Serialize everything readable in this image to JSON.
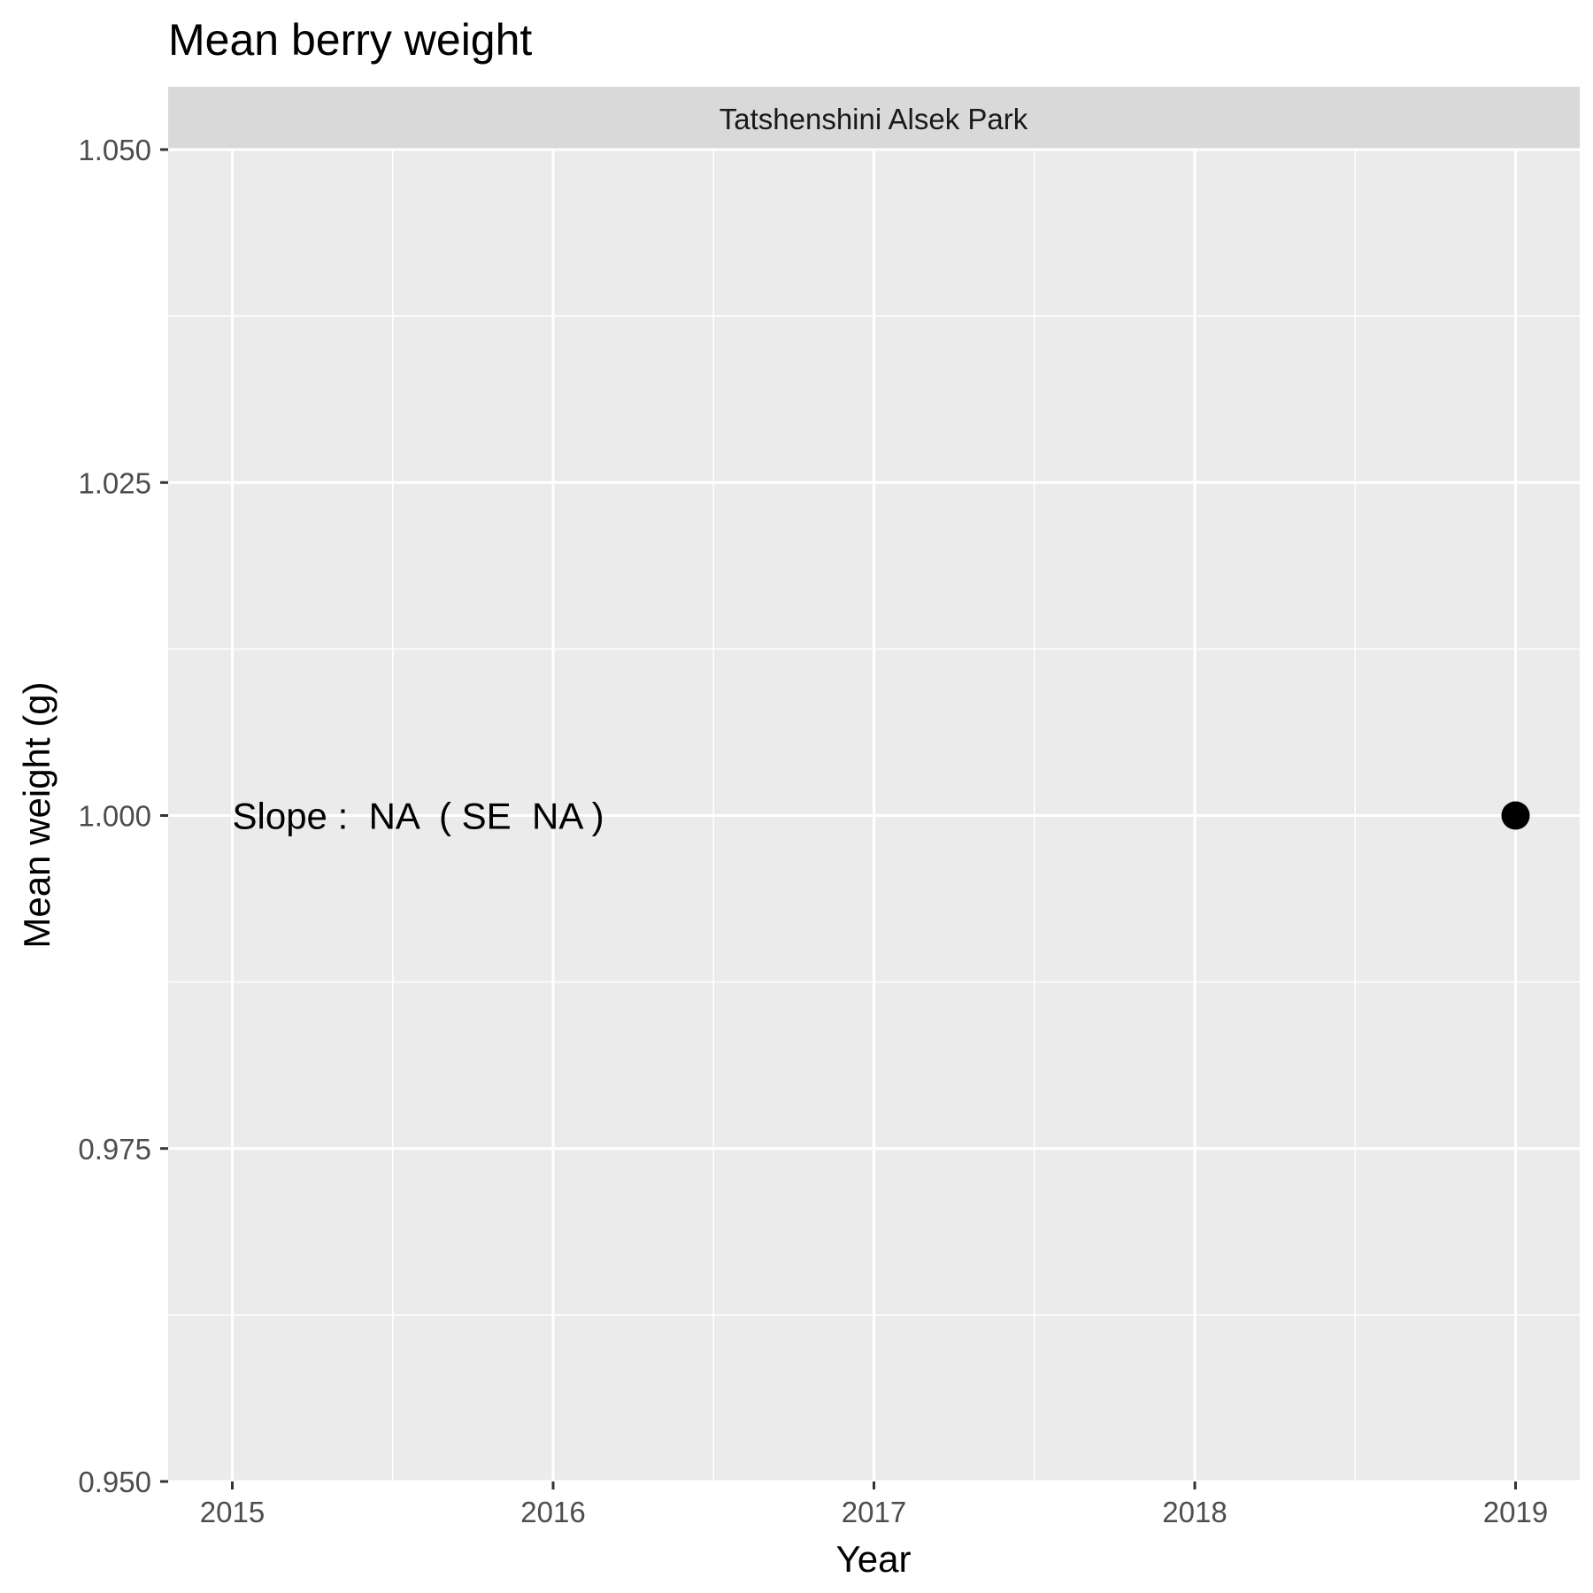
{
  "chart_data": {
    "type": "scatter",
    "title": "Mean berry weight",
    "facet": "Tatshenshini Alsek Park",
    "xlabel": "Year",
    "ylabel": "Mean weight (g)",
    "xlim": [
      2014.8,
      2019.2
    ],
    "ylim": [
      0.95,
      1.05
    ],
    "x_ticks": [
      2015,
      2016,
      2017,
      2018,
      2019
    ],
    "y_ticks": [
      0.95,
      0.975,
      1.0,
      1.025,
      1.05
    ],
    "y_tick_labels": [
      "0.950",
      "0.975",
      "1.000",
      "1.025",
      "1.050"
    ],
    "points": [
      {
        "x": 2019,
        "y": 1.0
      }
    ],
    "annotation": {
      "text": "Slope :  NA  ( SE  NA )",
      "x": 2015,
      "y": 1.0
    },
    "grid": true,
    "colors": {
      "panel": "#ebebeb",
      "strip": "#d9d9d9",
      "grid": "#ffffff",
      "point": "#000000"
    }
  }
}
